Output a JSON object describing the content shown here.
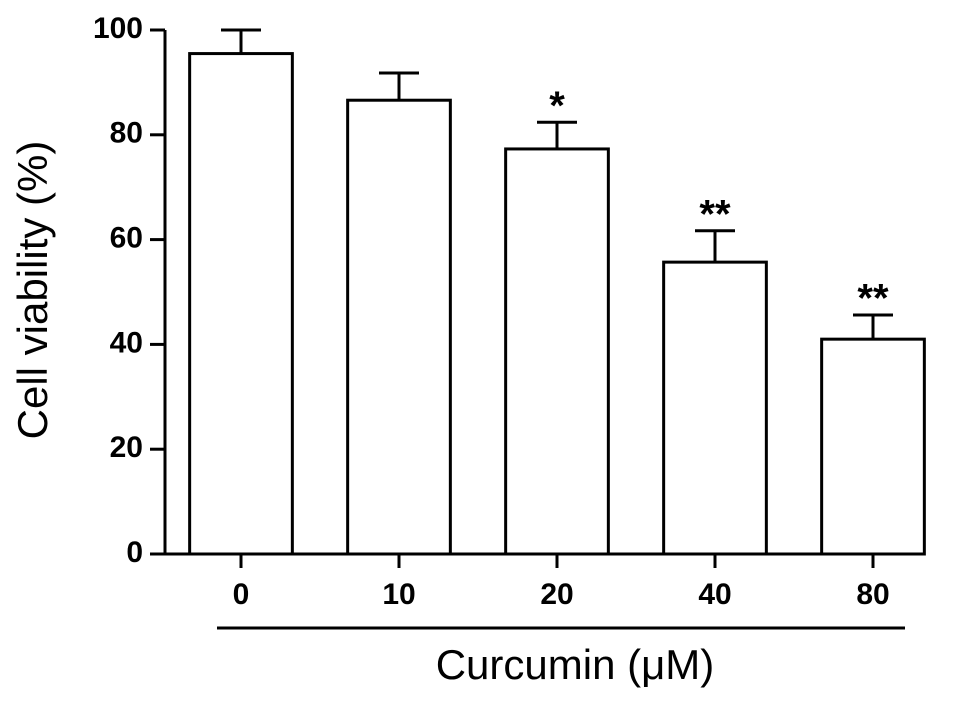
{
  "chart_data": {
    "type": "bar",
    "x_label": "Curcumin (μM)",
    "y_label": "Cell viability (%)",
    "categories": [
      "0",
      "10",
      "20",
      "40",
      "80"
    ],
    "values": [
      95.5,
      86.6,
      77.3,
      55.7,
      41.0
    ],
    "errors": [
      4.5,
      5.2,
      5.1,
      6.0,
      4.6
    ],
    "annotations": [
      null,
      null,
      "*",
      "**",
      "**"
    ],
    "color": "#ffffff",
    "ylim": [
      0,
      100
    ],
    "yticks": [
      0,
      20,
      40,
      60,
      80,
      100
    ],
    "grid": false
  }
}
